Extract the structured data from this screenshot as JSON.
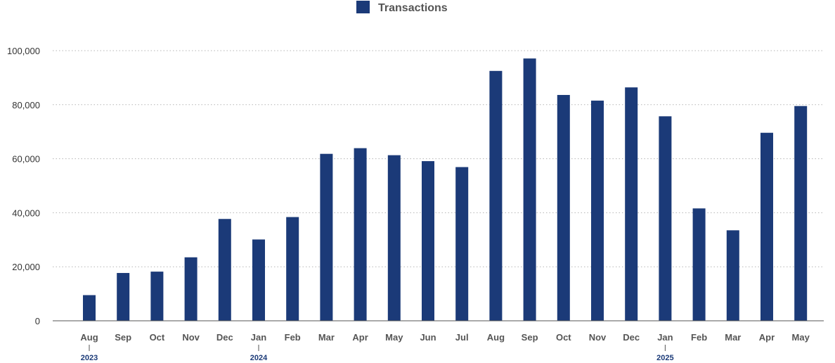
{
  "chart_data": {
    "type": "bar",
    "title": "",
    "xlabel": "",
    "ylabel": "",
    "legend": {
      "placement": "top-center"
    },
    "grid": true,
    "ylim": [
      0,
      100000
    ],
    "yticks": [
      0,
      20000,
      40000,
      60000,
      80000,
      100000
    ],
    "ytick_labels": [
      "0",
      "20,000",
      "40,000",
      "60,000",
      "80,000",
      "100,000"
    ],
    "categories": [
      "Aug",
      "Sep",
      "Oct",
      "Nov",
      "Dec",
      "Jan",
      "Feb",
      "Mar",
      "Apr",
      "May",
      "Jun",
      "Jul",
      "Aug",
      "Sep",
      "Oct",
      "Nov",
      "Dec",
      "Jan",
      "Feb",
      "Mar",
      "Apr",
      "May"
    ],
    "year_markers": [
      {
        "index": 0,
        "label": "2023"
      },
      {
        "index": 5,
        "label": "2024"
      },
      {
        "index": 17,
        "label": "2025"
      }
    ],
    "series": [
      {
        "name": "Transactions",
        "color": "#1b3a78",
        "values": [
          9500,
          17700,
          18200,
          23500,
          37700,
          30100,
          38400,
          61800,
          63900,
          61300,
          59100,
          56900,
          92500,
          97100,
          83600,
          81500,
          86400,
          75700,
          41600,
          33500,
          69600,
          79500
        ]
      }
    ]
  }
}
